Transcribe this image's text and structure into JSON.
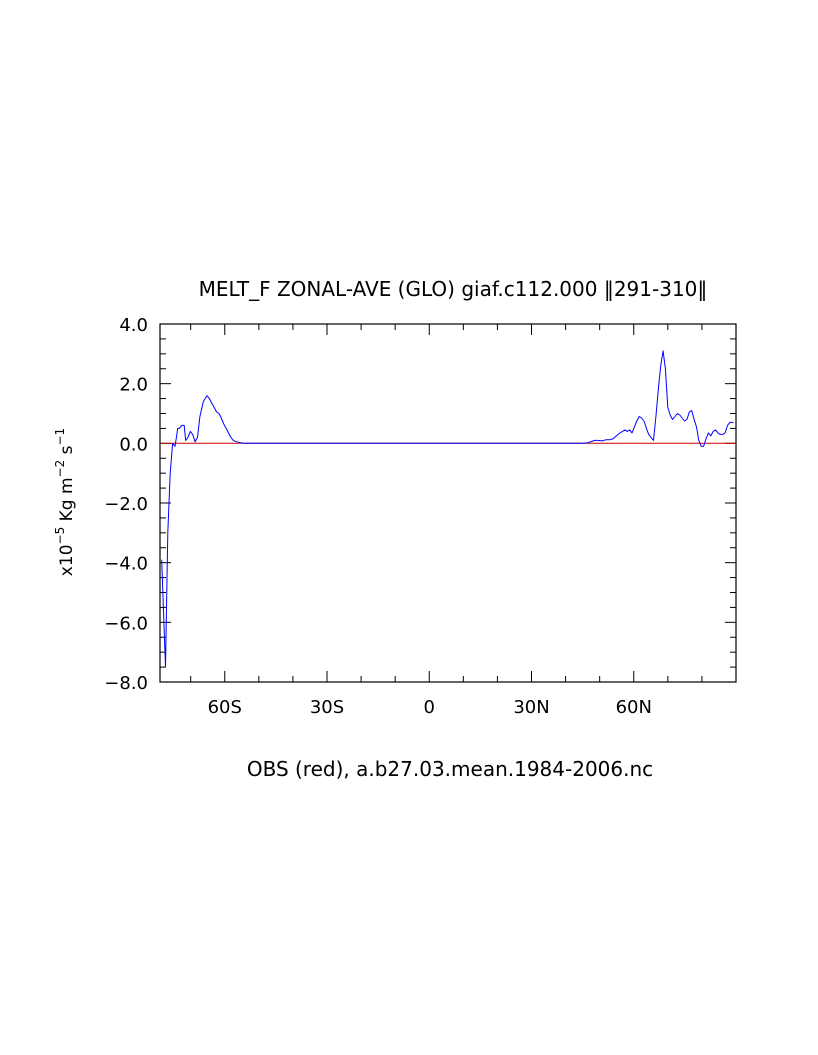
{
  "chart_data": {
    "type": "line",
    "title": "MELT_F ZONAL-AVE (GLO) giaf.c112.000 ‖291-310‖",
    "xlabel": "OBS (red), a.b27.03.mean.1984-2006.nc",
    "ylabel": {
      "prefix": "x10",
      "exp1": "−5",
      "middle": " Kg m",
      "exp2": "−2",
      "middle2": " s",
      "exp3": "−1"
    },
    "xlim": [
      -79,
      90
    ],
    "ylim": [
      -8,
      4
    ],
    "x_ticks": [
      {
        "value": -60,
        "label": "60S"
      },
      {
        "value": -30,
        "label": "30S"
      },
      {
        "value": 0,
        "label": "0"
      },
      {
        "value": 30,
        "label": "30N"
      },
      {
        "value": 60,
        "label": "60N"
      }
    ],
    "y_ticks": [
      {
        "value": 4,
        "label": "4.0"
      },
      {
        "value": 2,
        "label": "2.0"
      },
      {
        "value": 0,
        "label": "0.0"
      },
      {
        "value": -2,
        "label": "−2.0"
      },
      {
        "value": -4,
        "label": "−4.0"
      },
      {
        "value": -6,
        "label": "−6.0"
      },
      {
        "value": -8,
        "label": "−8.0"
      }
    ],
    "series": [
      {
        "color": "#0000ff",
        "x": [
          -78.5,
          -77.4,
          -76.7,
          -76.0,
          -75.3,
          -74.6,
          -74.2,
          -73.8,
          -73.3,
          -72.6,
          -71.9,
          -71.5,
          -70.8,
          -70.1,
          -69.4,
          -68.7,
          -68.0,
          -67.3,
          -66.3,
          -65.2,
          -64.5,
          -63.8,
          -63.1,
          -62.4,
          -61.7,
          -61.0,
          -60.3,
          -59.6,
          -58.9,
          -58.2,
          -57.5,
          -56.5,
          -55.4,
          -54.4,
          -53.3,
          -52.2,
          -50.8,
          -49.0,
          -45.0,
          -40.0,
          0,
          40.0,
          45.0,
          46.5,
          47.6,
          48.6,
          49.6,
          50.7,
          51.8,
          52.8,
          53.9,
          54.9,
          56.0,
          56.7,
          57.4,
          58.1,
          58.8,
          59.5,
          60.2,
          60.9,
          61.6,
          62.3,
          63.0,
          63.7,
          64.4,
          65.1,
          65.8,
          66.5,
          67.2,
          67.9,
          68.6,
          69.3,
          70.0,
          70.7,
          71.4,
          72.1,
          72.8,
          73.5,
          74.2,
          74.9,
          75.6,
          76.3,
          77.0,
          77.7,
          78.4,
          79.1,
          79.8,
          80.5,
          81.2,
          81.9,
          82.6,
          83.3,
          84.0,
          84.7,
          85.4,
          86.1,
          86.8,
          87.5,
          88.2,
          89.3
        ],
        "y": [
          -3.9,
          -7.5,
          -3.0,
          -1.0,
          0.0,
          -0.1,
          0.2,
          0.5,
          0.5,
          0.6,
          0.6,
          0.1,
          0.2,
          0.4,
          0.3,
          0.05,
          0.2,
          0.9,
          1.4,
          1.6,
          1.5,
          1.35,
          1.2,
          1.05,
          1.0,
          0.85,
          0.65,
          0.5,
          0.35,
          0.2,
          0.1,
          0.05,
          0.02,
          0.0,
          0.0,
          0.0,
          0.0,
          0.0,
          0.0,
          0.0,
          0.0,
          0.0,
          0.0,
          0.02,
          0.06,
          0.1,
          0.1,
          0.08,
          0.12,
          0.12,
          0.15,
          0.25,
          0.35,
          0.4,
          0.45,
          0.4,
          0.45,
          0.35,
          0.55,
          0.75,
          0.9,
          0.85,
          0.75,
          0.5,
          0.3,
          0.2,
          0.1,
          0.9,
          1.8,
          2.6,
          3.1,
          2.5,
          1.2,
          0.95,
          0.8,
          0.9,
          1.0,
          0.95,
          0.85,
          0.75,
          0.8,
          1.05,
          1.1,
          0.8,
          0.55,
          0.1,
          -0.1,
          -0.1,
          0.15,
          0.35,
          0.25,
          0.4,
          0.45,
          0.35,
          0.3,
          0.3,
          0.35,
          0.6,
          0.7,
          0.7
        ]
      },
      {
        "color": "#cc0000",
        "x": [
          -79,
          90
        ],
        "y": [
          0.0,
          0.0
        ]
      }
    ],
    "grid": false,
    "legend": "none"
  }
}
